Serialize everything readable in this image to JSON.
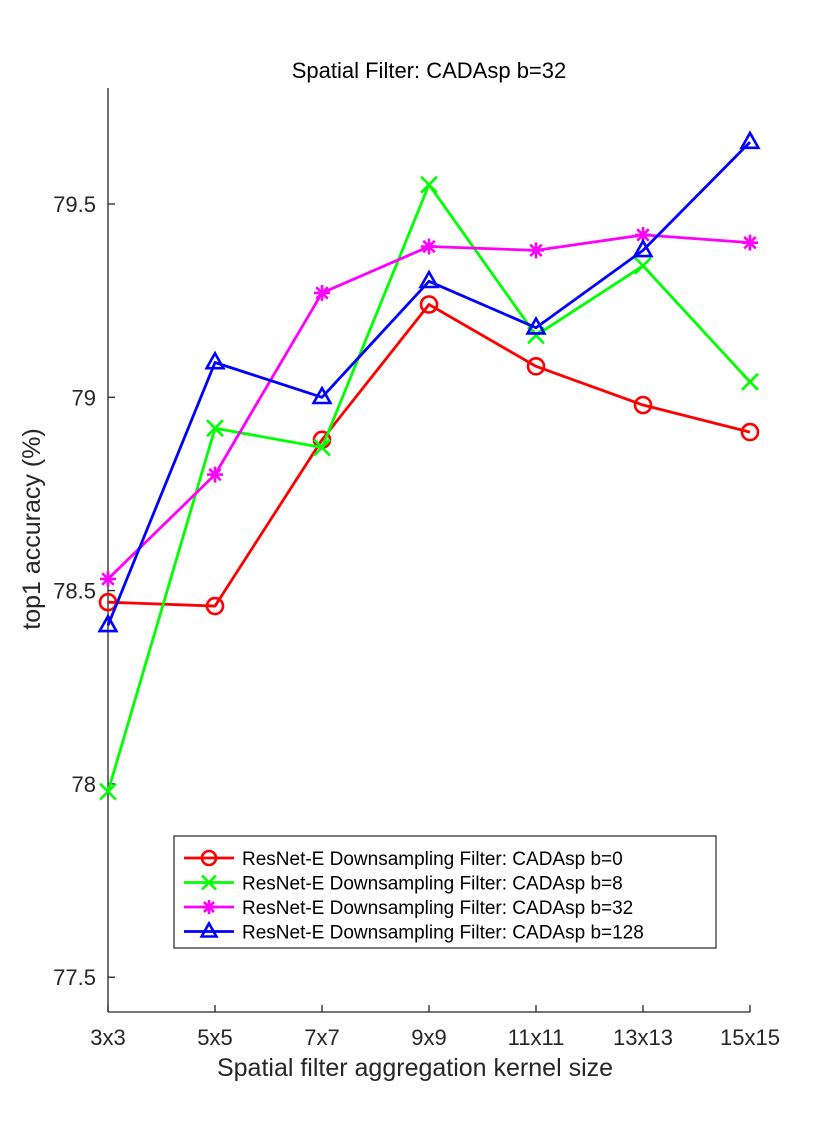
{
  "chart_data": {
    "type": "line",
    "title": "Spatial Filter: CADAsp b=32",
    "xlabel": "Spatial filter aggregation kernel size",
    "ylabel": "top1 accuracy (%)",
    "categories": [
      "3x3",
      "5x5",
      "7x7",
      "9x9",
      "11x11",
      "13x13",
      "15x15"
    ],
    "ylim": [
      77.41,
      79.8
    ],
    "yticks": [
      77.5,
      78,
      78.5,
      79,
      79.5
    ],
    "ytick_labels": [
      "77.5",
      "78",
      "78.5",
      "79",
      "79.5"
    ],
    "grid": false,
    "legend_position": "bottom-center",
    "series": [
      {
        "name": "ResNet-E Downsampling Filter: CADAsp b=0",
        "color": "#ff0000",
        "marker": "circle",
        "values": [
          78.47,
          78.46,
          78.89,
          79.24,
          79.08,
          78.98,
          78.91
        ]
      },
      {
        "name": "ResNet-E Downsampling Filter: CADAsp b=8",
        "color": "#00ff00",
        "marker": "x",
        "values": [
          77.98,
          78.92,
          78.87,
          79.55,
          79.16,
          79.34,
          79.04
        ]
      },
      {
        "name": "ResNet-E Downsampling Filter: CADAsp b=32",
        "color": "#ff00ff",
        "marker": "asterisk",
        "values": [
          78.53,
          78.8,
          79.27,
          79.39,
          79.38,
          79.42,
          79.4
        ]
      },
      {
        "name": "ResNet-E Downsampling Filter: CADAsp b=128",
        "color": "#0000ff",
        "marker": "triangle",
        "values": [
          78.41,
          79.09,
          79.0,
          79.3,
          79.18,
          79.38,
          79.66
        ]
      }
    ]
  }
}
